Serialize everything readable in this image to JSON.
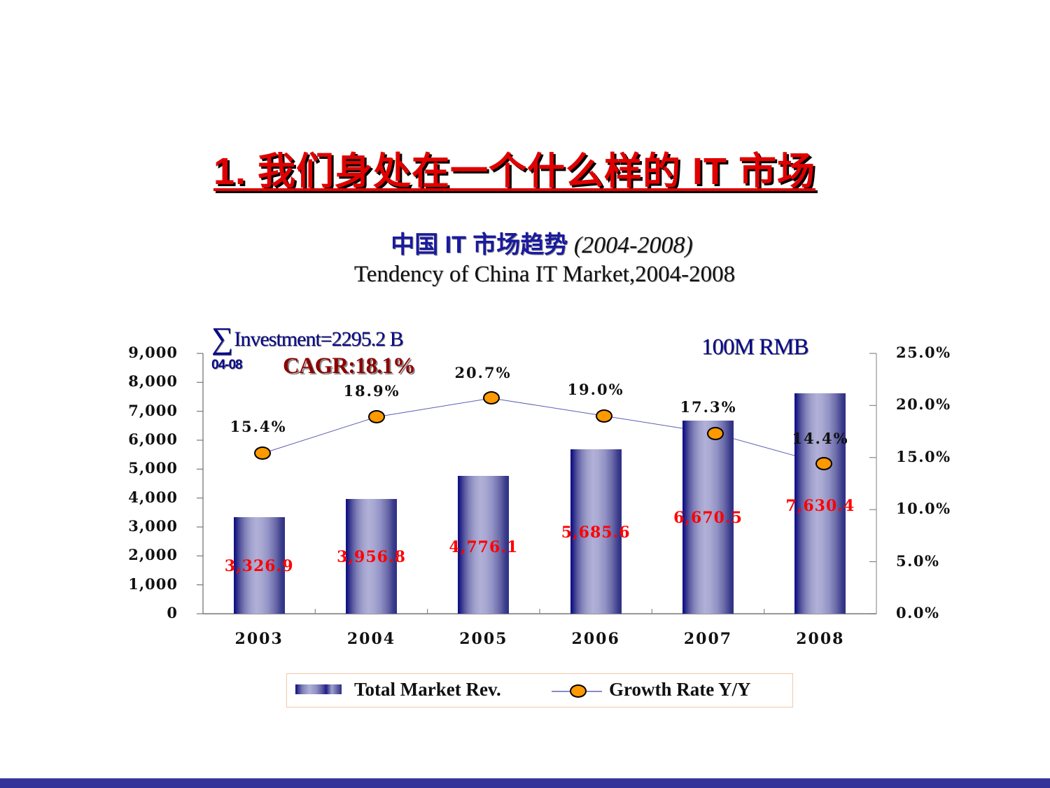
{
  "slide": {
    "title": "1. 我们身处在一个什么样的 IT 市场",
    "subtitle_cn": "中国 IT 市场趋势",
    "subtitle_years": "(2004-2008)",
    "subtitle_en": "Tendency of China IT Market,2004-2008",
    "footer_color": "#333399"
  },
  "annotations": {
    "sigma": "∑",
    "investment": "Investment=2295.2 B",
    "range": "04-08",
    "cagr": "CAGR:18.1%",
    "unit": "100M RMB"
  },
  "axes": {
    "left_ticks": [
      "9,000",
      "8,000",
      "7,000",
      "6,000",
      "5,000",
      "4,000",
      "3,000",
      "2,000",
      "1,000",
      "0"
    ],
    "right_ticks": [
      "25.0%",
      "20.0%",
      "15.0%",
      "10.0%",
      "5.0%",
      "0.0%"
    ],
    "x_ticks": [
      "2003",
      "2004",
      "2005",
      "2006",
      "2007",
      "2008"
    ]
  },
  "bars": [
    {
      "year": "2003",
      "value": 3326.9,
      "label": "3,326.9",
      "growth": 15.4,
      "growth_label": "15.4%"
    },
    {
      "year": "2004",
      "value": 3956.8,
      "label": "3,956.8",
      "growth": 18.9,
      "growth_label": "18.9%"
    },
    {
      "year": "2005",
      "value": 4776.1,
      "label": "4,776.1",
      "growth": 20.7,
      "growth_label": "20.7%"
    },
    {
      "year": "2006",
      "value": 5685.6,
      "label": "5,685.6",
      "growth": 19.0,
      "growth_label": "19.0%"
    },
    {
      "year": "2007",
      "value": 6670.5,
      "label": "6,670.5",
      "growth": 17.3,
      "growth_label": "17.3%"
    },
    {
      "year": "2008",
      "value": 7630.4,
      "label": "7,630.4",
      "growth": 14.4,
      "growth_label": "14.4%"
    }
  ],
  "legend": {
    "bar_label": "Total Market Rev.",
    "line_label": "Growth Rate Y/Y"
  },
  "chart_data": {
    "type": "bar",
    "title": "Tendency of China IT Market,2004-2008",
    "subtitle": "中国 IT 市场趋势 (2004-2008)",
    "categories": [
      "2003",
      "2004",
      "2005",
      "2006",
      "2007",
      "2008"
    ],
    "series": [
      {
        "name": "Total Market Rev.",
        "type": "bar",
        "axis": "left",
        "color": "#2a2a8a",
        "values": [
          3326.9,
          3956.8,
          4776.1,
          5685.6,
          6670.5,
          7630.4
        ]
      },
      {
        "name": "Growth Rate Y/Y",
        "type": "line",
        "axis": "right",
        "color": "#ff9900",
        "line_color": "#6666bb",
        "values": [
          15.4,
          18.9,
          20.7,
          19.0,
          17.3,
          14.4
        ]
      }
    ],
    "xlabel": "",
    "ylabel": "100M RMB",
    "ylim": [
      0,
      9000
    ],
    "y2lim": [
      0,
      25
    ],
    "y_ticks": [
      0,
      1000,
      2000,
      3000,
      4000,
      5000,
      6000,
      7000,
      8000,
      9000
    ],
    "y2_ticks": [
      0,
      5,
      10,
      15,
      20,
      25
    ],
    "annotations": [
      "∑ Investment=2295.2 B (04-08)",
      "CAGR:18.1%",
      "100M RMB"
    ],
    "legend_position": "bottom",
    "grid": false
  }
}
